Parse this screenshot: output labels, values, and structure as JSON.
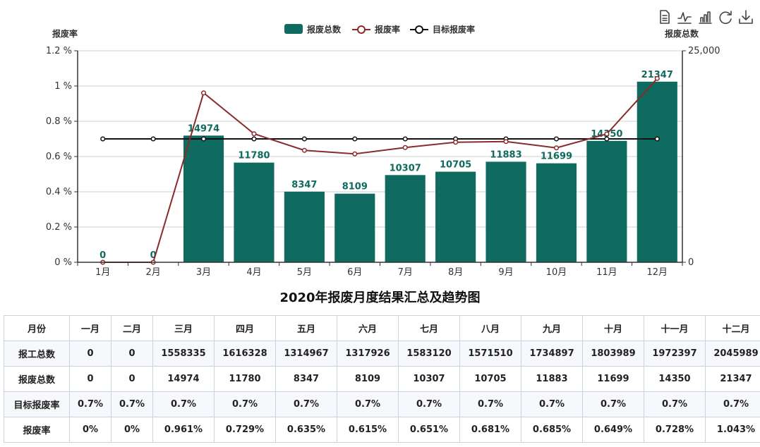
{
  "toolbox": {
    "icons": [
      "data-view-icon",
      "line-chart-icon",
      "bar-chart-icon",
      "restore-icon",
      "download-icon"
    ]
  },
  "colors": {
    "bar": "#0f6a60",
    "rate_line": "#8a2a2a",
    "target_line": "#111111"
  },
  "chart_data": {
    "type": "bar",
    "categories": [
      "1月",
      "2月",
      "3月",
      "4月",
      "5月",
      "6月",
      "7月",
      "8月",
      "9月",
      "10月",
      "11月",
      "12月"
    ],
    "series": [
      {
        "name": "报废总数",
        "type": "bar",
        "axis": "right",
        "values": [
          0,
          0,
          14974,
          11780,
          8347,
          8109,
          10307,
          10705,
          11883,
          11699,
          14350,
          21347
        ]
      },
      {
        "name": "报废率",
        "type": "line",
        "axis": "left",
        "values": [
          0,
          0,
          0.961,
          0.729,
          0.635,
          0.615,
          0.651,
          0.681,
          0.685,
          0.649,
          0.728,
          1.043
        ]
      },
      {
        "name": "目标报废率",
        "type": "line",
        "axis": "left",
        "values": [
          0.7,
          0.7,
          0.7,
          0.7,
          0.7,
          0.7,
          0.7,
          0.7,
          0.7,
          0.7,
          0.7,
          0.7
        ]
      }
    ],
    "left_axis": {
      "label": "报废率",
      "ylim": [
        0,
        1.2
      ],
      "ticks": [
        "0 %",
        "0.2 %",
        "0.4 %",
        "0.6 %",
        "0.8 %",
        "1 %",
        "1.2 %"
      ]
    },
    "right_axis": {
      "label": "报废总数",
      "ylim": [
        0,
        25000
      ],
      "ticks": [
        "0",
        "25,000"
      ]
    },
    "legend": [
      "报废总数",
      "报废率",
      "目标报废率"
    ],
    "legend_position": "top-center",
    "grid": true
  },
  "title": "2020年报废月度结果汇总及趋势图",
  "table": {
    "header": [
      "月份",
      "一月",
      "二月",
      "三月",
      "四月",
      "五月",
      "六月",
      "七月",
      "八月",
      "九月",
      "十月",
      "十一月",
      "十二月"
    ],
    "rows": [
      [
        "报工总数",
        "0",
        "0",
        "1558335",
        "1616328",
        "1314967",
        "1317926",
        "1583120",
        "1571510",
        "1734897",
        "1803989",
        "1972397",
        "2045989"
      ],
      [
        "报废总数",
        "0",
        "0",
        "14974",
        "11780",
        "8347",
        "8109",
        "10307",
        "10705",
        "11883",
        "11699",
        "14350",
        "21347"
      ],
      [
        "目标报废率",
        "0.7%",
        "0.7%",
        "0.7%",
        "0.7%",
        "0.7%",
        "0.7%",
        "0.7%",
        "0.7%",
        "0.7%",
        "0.7%",
        "0.7%",
        "0.7%"
      ],
      [
        "报废率",
        "0%",
        "0%",
        "0.961%",
        "0.729%",
        "0.635%",
        "0.615%",
        "0.651%",
        "0.681%",
        "0.685%",
        "0.649%",
        "0.728%",
        "1.043%"
      ]
    ]
  }
}
